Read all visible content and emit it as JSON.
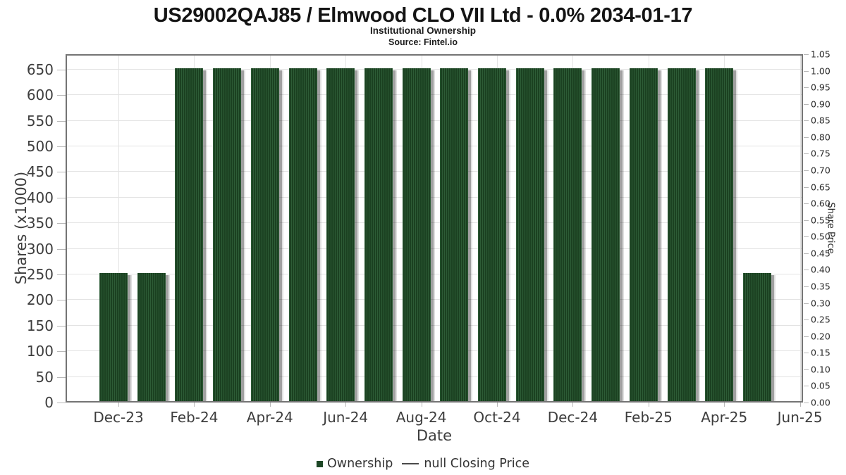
{
  "page": {
    "background": "#ffffff"
  },
  "chart_data": {
    "type": "bar",
    "title": "US29002QAJ85 / Elmwood CLO VII Ltd - 0.0% 2034-01-17",
    "subtitle": "Institutional Ownership",
    "source": "Source: Fintel.io",
    "xlabel": "Date",
    "ylabel_left": "Shares (x1000)",
    "ylabel_right": "Share Price",
    "categories": [
      "Dec-23",
      "Jan-24",
      "Feb-24",
      "Mar-24",
      "Apr-24",
      "May-24",
      "Jun-24",
      "Jul-24",
      "Aug-24",
      "Sep-24",
      "Oct-24",
      "Nov-24",
      "Dec-24",
      "Jan-25",
      "Feb-25",
      "Mar-25",
      "Apr-25",
      "May-25"
    ],
    "series": [
      {
        "name": "Ownership",
        "values": [
          250,
          250,
          650,
          650,
          650,
          650,
          650,
          650,
          650,
          650,
          650,
          650,
          650,
          650,
          650,
          650,
          650,
          250
        ]
      }
    ],
    "x_tick_labels": [
      "Dec-23",
      "Feb-24",
      "Apr-24",
      "Jun-24",
      "Aug-24",
      "Oct-24",
      "Dec-24",
      "Feb-25",
      "Apr-25",
      "Jun-25"
    ],
    "y_left_ticks": [
      0,
      50,
      100,
      150,
      200,
      250,
      300,
      350,
      400,
      450,
      500,
      550,
      600,
      650
    ],
    "y_right_tick_labels": [
      "0.00",
      "0.05",
      "0.10",
      "0.15",
      "0.20",
      "0.25",
      "0.30",
      "0.35",
      "0.40",
      "0.45",
      "0.50",
      "0.55",
      "0.60",
      "0.65",
      "0.70",
      "0.75",
      "0.80",
      "0.85",
      "0.90",
      "0.95",
      "1.00",
      "1.05"
    ],
    "ylim_left": [
      0,
      680
    ],
    "ylim_right": [
      0,
      1.05
    ],
    "grid": true,
    "legend_position": "bottom",
    "legend": [
      {
        "label": "Ownership",
        "marker": "square",
        "color": "#1d4726"
      },
      {
        "label": "null Closing Price",
        "marker": "line",
        "color": "#4a4a4a"
      }
    ],
    "bar_colors": {
      "base": "#1b4121",
      "stripe": "#2d5c36"
    }
  }
}
